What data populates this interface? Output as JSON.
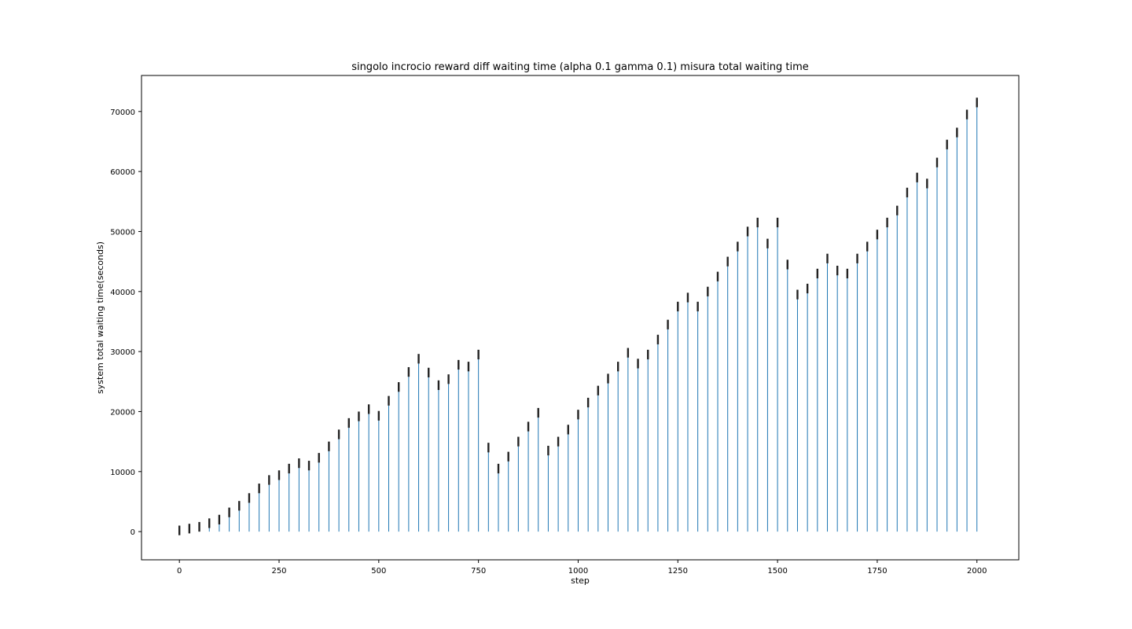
{
  "chart_data": {
    "type": "stem",
    "title": "singolo incrocio reward diff waiting time (alpha 0.1 gamma 0.1) misura total waiting time",
    "xlabel": "step",
    "ylabel": "system total waiting time(seconds)",
    "xlim": [
      -95,
      2105
    ],
    "ylim": [
      -4700,
      76000
    ],
    "xticks": [
      0,
      250,
      500,
      750,
      1000,
      1250,
      1500,
      1750,
      2000
    ],
    "xtick_labels": [
      "0",
      "250",
      "500",
      "750",
      "1000",
      "1250",
      "1500",
      "1750",
      "2000"
    ],
    "yticks": [
      0,
      10000,
      20000,
      30000,
      40000,
      50000,
      60000,
      70000
    ],
    "ytick_labels": [
      "0",
      "10000",
      "20000",
      "30000",
      "40000",
      "50000",
      "60000",
      "70000"
    ],
    "grid": false,
    "stem_color": "#1f77b4",
    "bar_color": "#222222",
    "series": [
      {
        "x": [
          0,
          25,
          50,
          75,
          100,
          125,
          150,
          175,
          200,
          225,
          250,
          275,
          300,
          325,
          350,
          375,
          400,
          425,
          450,
          475,
          500,
          525,
          550,
          575,
          600,
          625,
          650,
          675,
          700,
          725,
          750,
          775,
          800,
          825,
          850,
          875,
          900,
          925,
          950,
          975,
          1000,
          1025,
          1050,
          1075,
          1100,
          1125,
          1150,
          1175,
          1200,
          1225,
          1250,
          1275,
          1300,
          1325,
          1350,
          1375,
          1400,
          1425,
          1450,
          1475,
          1500,
          1525,
          1550,
          1575,
          1600,
          1625,
          1650,
          1675,
          1700,
          1725,
          1750,
          1775,
          1800,
          1825,
          1850,
          1875,
          1900,
          1925,
          1950,
          1975,
          2000
        ],
        "values": [
          200,
          500,
          800,
          1400,
          2000,
          3200,
          4300,
          5600,
          7200,
          8600,
          9400,
          10500,
          11400,
          11000,
          12300,
          14200,
          16200,
          18100,
          19200,
          20400,
          19300,
          21800,
          24100,
          26600,
          28800,
          26500,
          24400,
          25400,
          27800,
          27500,
          29500,
          14000,
          10500,
          12500,
          15000,
          17500,
          19800,
          13500,
          15000,
          17000,
          19500,
          21500,
          23500,
          25500,
          27500,
          29800,
          28000,
          29500,
          32000,
          34500,
          37500,
          39000,
          37500,
          40000,
          42500,
          45000,
          47500,
          50000,
          51500,
          48000,
          51500,
          44500,
          39500,
          40500,
          43000,
          45500,
          43500,
          43000,
          45500,
          47500,
          49500,
          51500,
          53500,
          56500,
          59000,
          58000,
          61500,
          64500,
          66500,
          69500,
          71500
        ]
      }
    ]
  }
}
